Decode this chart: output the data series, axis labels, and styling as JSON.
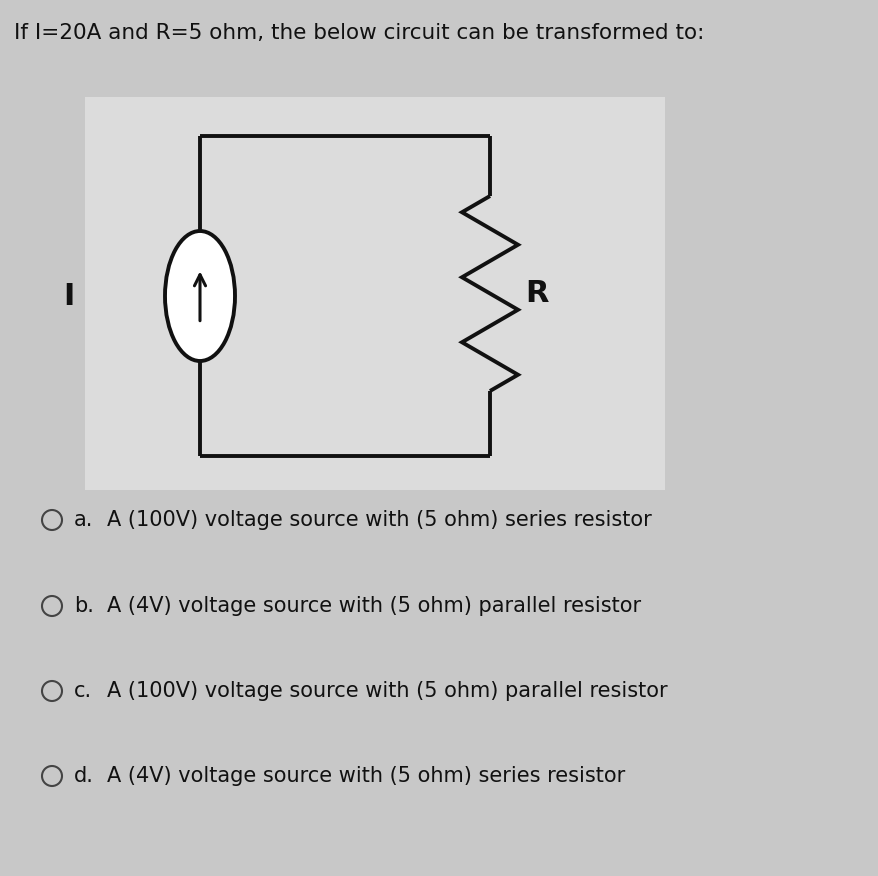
{
  "bg_color": "#c8c8c8",
  "circuit_bg": "#dcdcdc",
  "title_text": "If I=20A and R=5 ohm, the below circuit can be transformed to:",
  "title_fontsize": 15.5,
  "options": [
    {
      "label": "a.",
      "text": "A (100V) voltage source with (5 ohm) series resistor"
    },
    {
      "label": "b.",
      "text": "A (4V) voltage source with (5 ohm) parallel resistor"
    },
    {
      "label": "c.",
      "text": "A (100V) voltage source with (5 ohm) parallel resistor"
    },
    {
      "label": "d.",
      "text": "A (4V) voltage source with (5 ohm) series resistor"
    }
  ],
  "options_fontsize": 15,
  "line_color": "#111111",
  "line_width": 2.8
}
